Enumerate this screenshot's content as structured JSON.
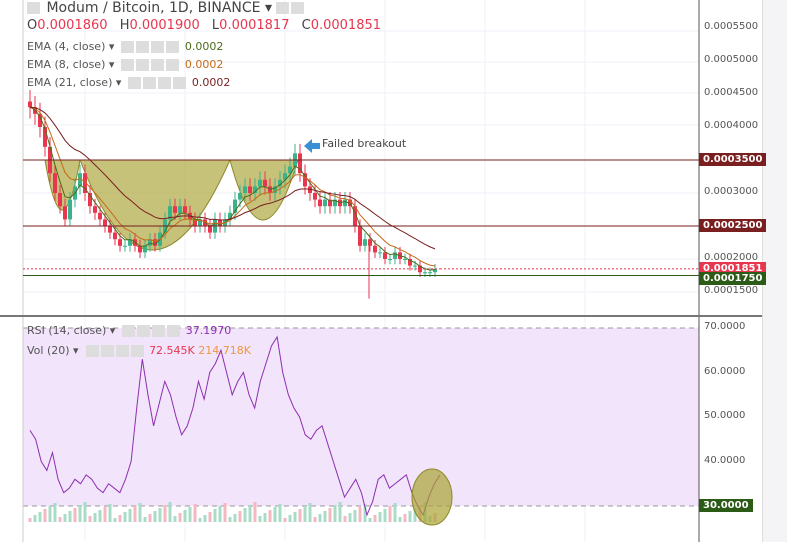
{
  "header": {
    "title": "Modum / Bitcoin, 1D, BINANCE",
    "open_label": "O",
    "open": "0.0001860",
    "high_label": "H",
    "high": "0.0001900",
    "low_label": "L",
    "low": "0.0001817",
    "close_label": "C",
    "close": "0.0001851"
  },
  "indicators": [
    {
      "label": "EMA (4, close)",
      "value": "0.0002",
      "color": "#4b6b1c"
    },
    {
      "label": "EMA (8, close)",
      "value": "0.0002",
      "color": "#c46a1a"
    },
    {
      "label": "EMA (21, close)",
      "value": "0.0002",
      "color": "#7a1f1f"
    }
  ],
  "rsi": {
    "label": "RSI (14, close)",
    "value": "37.1970",
    "color": "#8e2fb0"
  },
  "vol": {
    "label": "Vol (20)",
    "value": "72.545K",
    "ma_value": "214.718K",
    "value_color": "#e8364f",
    "ma_color": "#f0963c"
  },
  "annotation": {
    "text": "Failed breakout",
    "arrow_color": "#3b8fd6"
  },
  "colors": {
    "up": "#3bb38a",
    "down": "#e8364f",
    "resistance": "#7a1f1f",
    "support": "#2c5a17",
    "cup_fill": "#a9a233",
    "rsi_bg": "#f1e4fb"
  },
  "chart_data": [
    {
      "type": "candlestick",
      "title": "Modum / Bitcoin, 1D, BINANCE",
      "y_ticks": [
        "0.0005500",
        "0.0005000",
        "0.0004500",
        "0.0004000",
        "0.0003000",
        "0.0002000",
        "0.0001500"
      ],
      "horizontal_levels": [
        {
          "value": "0.0003500",
          "color": "#7a1f1f"
        },
        {
          "value": "0.0002500",
          "color": "#7a1f1f"
        },
        {
          "value": "0.0001851",
          "color": "#e8364f"
        },
        {
          "value": "0.0001750",
          "color": "#2c5a17"
        }
      ],
      "close": [
        0.00043,
        0.00042,
        0.0004,
        0.00037,
        0.00033,
        0.0003,
        0.00028,
        0.00026,
        0.00029,
        0.00031,
        0.00033,
        0.0003,
        0.00028,
        0.00027,
        0.00026,
        0.00025,
        0.00024,
        0.00023,
        0.00022,
        0.00022,
        0.00023,
        0.00022,
        0.00021,
        0.00022,
        0.00023,
        0.00022,
        0.00024,
        0.00026,
        0.00028,
        0.00027,
        0.00028,
        0.00027,
        0.00026,
        0.00025,
        0.00026,
        0.00025,
        0.00024,
        0.00026,
        0.00025,
        0.00026,
        0.00027,
        0.00029,
        0.0003,
        0.00031,
        0.0003,
        0.00031,
        0.00032,
        0.00031,
        0.0003,
        0.00031,
        0.00032,
        0.00033,
        0.00034,
        0.00036,
        0.00033,
        0.00031,
        0.0003,
        0.00029,
        0.00028,
        0.00029,
        0.00028,
        0.00029,
        0.00028,
        0.00029,
        0.00028,
        0.00025,
        0.00022,
        0.00023,
        0.00022,
        0.00021,
        0.00021,
        0.0002,
        0.0002,
        0.00021,
        0.0002,
        0.0002,
        0.00019,
        0.00019,
        0.00018,
        0.00018,
        0.00018,
        0.000185
      ]
    },
    {
      "type": "line",
      "title": "RSI (14, close)",
      "y_ticks": [
        "70.0000",
        "60.0000",
        "50.0000",
        "40.0000",
        "30.0000"
      ],
      "ylim": [
        30,
        70
      ],
      "values": [
        47,
        45,
        40,
        38,
        42,
        36,
        33,
        34,
        36,
        35,
        37,
        36,
        34,
        33,
        35,
        34,
        33,
        36,
        40,
        52,
        63,
        55,
        48,
        53,
        58,
        55,
        50,
        46,
        48,
        52,
        58,
        54,
        60,
        62,
        65,
        60,
        55,
        58,
        60,
        55,
        52,
        58,
        62,
        66,
        68,
        60,
        55,
        52,
        50,
        46,
        45,
        47,
        48,
        44,
        40,
        36,
        32,
        34,
        36,
        33,
        28,
        31,
        36,
        37,
        34,
        35,
        36,
        37,
        33,
        30,
        28,
        32,
        35,
        37
      ]
    }
  ]
}
